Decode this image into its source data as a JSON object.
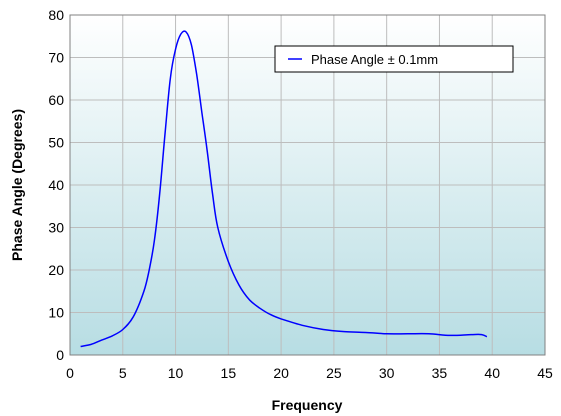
{
  "chart_data": {
    "type": "line",
    "title": "",
    "xlabel": "Frequency",
    "ylabel": "Phase Angle (Degrees)",
    "xlim": [
      0,
      45
    ],
    "ylim": [
      0,
      80
    ],
    "xticks": [
      0,
      5,
      10,
      15,
      20,
      25,
      30,
      35,
      40,
      45
    ],
    "yticks": [
      0,
      10,
      20,
      30,
      40,
      50,
      60,
      70,
      80
    ],
    "grid": true,
    "legend_position": "top-right",
    "background_gradient": [
      "#ffffff",
      "#b7dde3"
    ],
    "series": [
      {
        "name": "Phase Angle ± 0.1mm",
        "color": "#0000ff",
        "x": [
          1,
          2,
          3,
          4,
          5,
          6,
          7,
          7.5,
          8,
          8.5,
          9,
          9.5,
          10,
          10.5,
          11,
          11.5,
          12,
          12.5,
          13,
          13.5,
          14,
          15,
          16,
          17,
          18,
          19,
          20,
          22,
          24,
          26,
          28,
          30,
          32,
          34,
          36,
          38,
          39,
          39.5
        ],
        "y": [
          2,
          2.5,
          3.5,
          4.5,
          6,
          9,
          15,
          20,
          27,
          38,
          52,
          65,
          72,
          75.5,
          76,
          73,
          66,
          57,
          48,
          38,
          30,
          22,
          16.5,
          13,
          11,
          9.5,
          8.5,
          7,
          6,
          5.5,
          5.3,
          5,
          5,
          5,
          4.6,
          4.8,
          4.8,
          4.3
        ]
      }
    ]
  }
}
